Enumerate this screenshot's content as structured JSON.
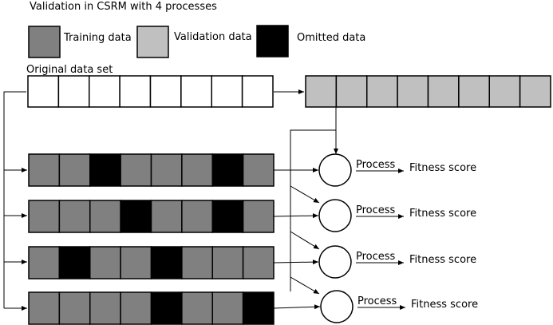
{
  "title": "Validation in CSRM with 4 processes",
  "legend": [
    {
      "label": "Training data",
      "color": "#808080"
    },
    {
      "label": "Validation data",
      "color": "#c0c0c0"
    },
    {
      "label": "Omitted data",
      "color": "#000000"
    }
  ],
  "original_label": "Original data set",
  "colors": {
    "training": "#808080",
    "validation": "#c0c0c0",
    "omitted": "#000000",
    "original": "#ffffff"
  },
  "original_cells": 8,
  "validation_cells": 8,
  "rows": [
    {
      "pattern": [
        "T",
        "T",
        "O",
        "T",
        "T",
        "T",
        "O",
        "T"
      ],
      "process_label": "Process",
      "score_label": "Fitness score"
    },
    {
      "pattern": [
        "T",
        "T",
        "T",
        "O",
        "T",
        "T",
        "O",
        "T"
      ],
      "process_label": "Process",
      "score_label": "Fitness score"
    },
    {
      "pattern": [
        "T",
        "O",
        "T",
        "T",
        "O",
        "T",
        "T",
        "T"
      ],
      "process_label": "Process",
      "score_label": "Fitness score"
    },
    {
      "pattern": [
        "T",
        "T",
        "T",
        "T",
        "O",
        "T",
        "T",
        "O"
      ],
      "process_label": "Process",
      "score_label": "Fitness score"
    }
  ]
}
